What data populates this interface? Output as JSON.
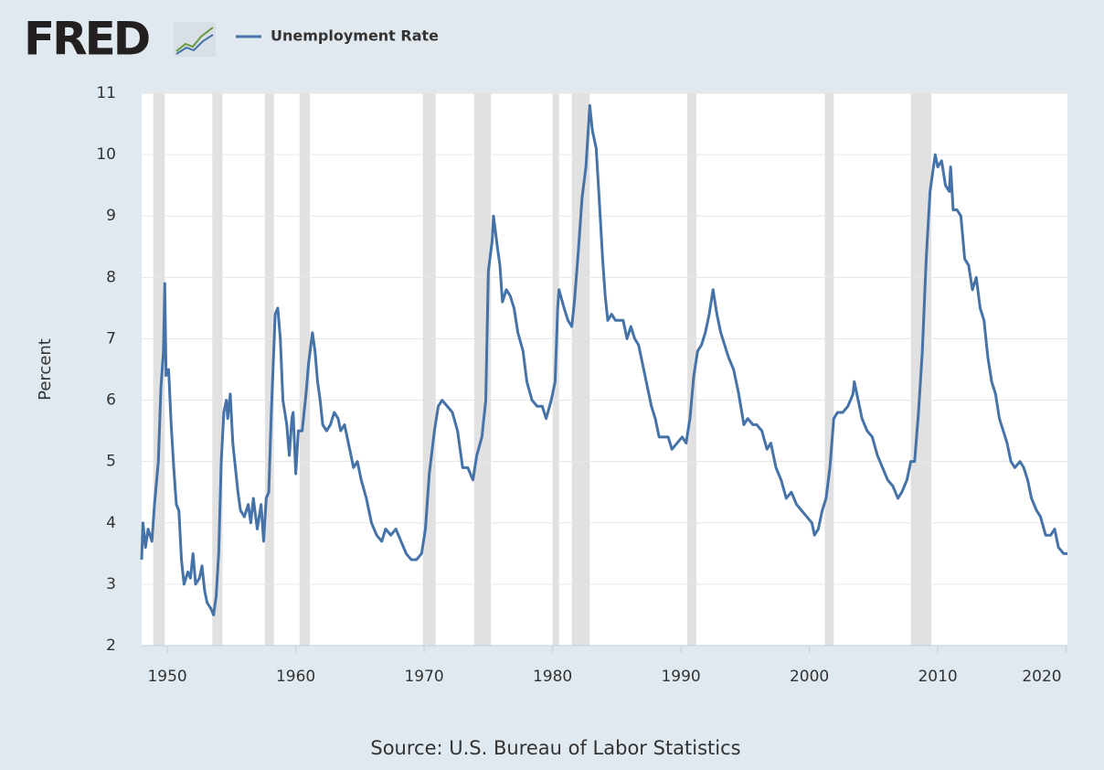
{
  "chart_data": {
    "type": "line",
    "logo": "FRED",
    "ylabel": "Percent",
    "source": "Source: U.S. Bureau of Labor Statistics",
    "xlim": [
      1948,
      2020.1
    ],
    "xticks": [
      1950,
      1960,
      1970,
      1980,
      1990,
      2000,
      2010,
      2020
    ],
    "ylim": [
      2,
      11
    ],
    "yticks": [
      2,
      3,
      4,
      5,
      6,
      7,
      8,
      9,
      10,
      11
    ],
    "grid": true,
    "recession_color": "#e1e1e1",
    "recessions": [
      [
        1948.9,
        1949.8
      ],
      [
        1953.5,
        1954.3
      ],
      [
        1957.6,
        1958.3
      ],
      [
        1960.3,
        1961.1
      ],
      [
        1969.9,
        1970.9
      ],
      [
        1973.9,
        1975.2
      ],
      [
        1980.0,
        1980.5
      ],
      [
        1981.5,
        1982.9
      ],
      [
        1990.5,
        1991.2
      ],
      [
        2001.2,
        2001.9
      ],
      [
        2007.9,
        2009.5
      ]
    ],
    "x": [
      1948.0,
      1948.1,
      1948.3,
      1948.5,
      1948.8,
      1949.0,
      1949.3,
      1949.5,
      1949.7,
      1949.8,
      1949.9,
      1950.1,
      1950.3,
      1950.5,
      1950.7,
      1950.9,
      1951.1,
      1951.3,
      1951.6,
      1951.8,
      1952.0,
      1952.2,
      1952.5,
      1952.7,
      1952.9,
      1953.1,
      1953.4,
      1953.6,
      1953.8,
      1954.0,
      1954.2,
      1954.4,
      1954.6,
      1954.7,
      1954.9,
      1955.1,
      1955.3,
      1955.5,
      1955.7,
      1956.0,
      1956.3,
      1956.5,
      1956.7,
      1957.0,
      1957.3,
      1957.5,
      1957.7,
      1957.9,
      1958.1,
      1958.4,
      1958.6,
      1958.8,
      1959.0,
      1959.3,
      1959.5,
      1959.7,
      1959.8,
      1960.0,
      1960.2,
      1960.5,
      1960.8,
      1961.0,
      1961.3,
      1961.5,
      1961.7,
      1961.9,
      1962.1,
      1962.4,
      1962.7,
      1963.0,
      1963.3,
      1963.5,
      1963.8,
      1964.2,
      1964.5,
      1964.8,
      1965.1,
      1965.5,
      1965.9,
      1966.3,
      1966.7,
      1967.0,
      1967.4,
      1967.8,
      1968.2,
      1968.6,
      1969.0,
      1969.4,
      1969.8,
      1970.1,
      1970.4,
      1970.8,
      1971.1,
      1971.4,
      1971.8,
      1972.2,
      1972.6,
      1973.0,
      1973.4,
      1973.8,
      1974.1,
      1974.5,
      1974.8,
      1975.0,
      1975.3,
      1975.4,
      1975.7,
      1975.9,
      1976.1,
      1976.4,
      1976.7,
      1977.0,
      1977.3,
      1977.7,
      1978.0,
      1978.4,
      1978.8,
      1979.2,
      1979.5,
      1979.9,
      1980.2,
      1980.4,
      1980.5,
      1980.9,
      1981.2,
      1981.5,
      1981.7,
      1982.0,
      1982.3,
      1982.6,
      1982.9,
      1983.1,
      1983.4,
      1983.6,
      1983.9,
      1984.1,
      1984.3,
      1984.6,
      1984.9,
      1985.2,
      1985.5,
      1985.8,
      1986.1,
      1986.4,
      1986.7,
      1987.0,
      1987.3,
      1987.7,
      1988.0,
      1988.3,
      1988.7,
      1989.0,
      1989.3,
      1989.7,
      1990.1,
      1990.4,
      1990.7,
      1991.0,
      1991.3,
      1991.6,
      1991.9,
      1992.2,
      1992.5,
      1992.8,
      1993.1,
      1993.4,
      1993.7,
      1994.1,
      1994.5,
      1994.9,
      1995.2,
      1995.6,
      1995.9,
      1996.3,
      1996.7,
      1997.0,
      1997.4,
      1997.8,
      1998.2,
      1998.6,
      1999.0,
      1999.4,
      1999.8,
      2000.2,
      2000.4,
      2000.7,
      2001.0,
      2001.3,
      2001.6,
      2001.9,
      2002.2,
      2002.6,
      2003.0,
      2003.4,
      2003.5,
      2003.8,
      2004.1,
      2004.5,
      2004.9,
      2005.3,
      2005.7,
      2006.1,
      2006.5,
      2006.9,
      2007.2,
      2007.6,
      2007.9,
      2008.2,
      2008.5,
      2008.8,
      2009.1,
      2009.4,
      2009.8,
      2010.0,
      2010.3,
      2010.6,
      2010.9,
      2011.0,
      2011.2,
      2011.5,
      2011.8,
      2012.1,
      2012.4,
      2012.7,
      2013.0,
      2013.3,
      2013.6,
      2013.9,
      2014.2,
      2014.5,
      2014.8,
      2015.1,
      2015.4,
      2015.7,
      2016.0,
      2016.4,
      2016.7,
      2017.0,
      2017.3,
      2017.7,
      2018.0,
      2018.4,
      2018.8,
      2019.1,
      2019.4,
      2019.8,
      2020.1
    ],
    "series": [
      {
        "name": "Unemployment Rate",
        "color": "#4572a7",
        "values": [
          3.4,
          4.0,
          3.6,
          3.9,
          3.7,
          4.3,
          5.0,
          6.2,
          6.8,
          7.9,
          6.4,
          6.5,
          5.6,
          4.9,
          4.3,
          4.2,
          3.4,
          3.0,
          3.2,
          3.1,
          3.5,
          3.0,
          3.1,
          3.3,
          2.9,
          2.7,
          2.6,
          2.5,
          2.8,
          3.5,
          5.0,
          5.8,
          6.0,
          5.7,
          6.1,
          5.3,
          4.9,
          4.5,
          4.2,
          4.1,
          4.3,
          4.0,
          4.4,
          3.9,
          4.3,
          3.7,
          4.4,
          4.5,
          5.8,
          7.4,
          7.5,
          7.0,
          6.0,
          5.6,
          5.1,
          5.7,
          5.8,
          4.8,
          5.5,
          5.5,
          6.1,
          6.6,
          7.1,
          6.8,
          6.3,
          6.0,
          5.6,
          5.5,
          5.6,
          5.8,
          5.7,
          5.5,
          5.6,
          5.2,
          4.9,
          5.0,
          4.7,
          4.4,
          4.0,
          3.8,
          3.7,
          3.9,
          3.8,
          3.9,
          3.7,
          3.5,
          3.4,
          3.4,
          3.5,
          3.9,
          4.8,
          5.5,
          5.9,
          6.0,
          5.9,
          5.8,
          5.5,
          4.9,
          4.9,
          4.7,
          5.1,
          5.4,
          6.0,
          8.1,
          8.6,
          9.0,
          8.5,
          8.2,
          7.6,
          7.8,
          7.7,
          7.5,
          7.1,
          6.8,
          6.3,
          6.0,
          5.9,
          5.9,
          5.7,
          6.0,
          6.3,
          7.5,
          7.8,
          7.5,
          7.3,
          7.2,
          7.6,
          8.4,
          9.3,
          9.8,
          10.8,
          10.4,
          10.1,
          9.4,
          8.3,
          7.7,
          7.3,
          7.4,
          7.3,
          7.3,
          7.3,
          7.0,
          7.2,
          7.0,
          6.9,
          6.6,
          6.3,
          5.9,
          5.7,
          5.4,
          5.4,
          5.4,
          5.2,
          5.3,
          5.4,
          5.3,
          5.7,
          6.4,
          6.8,
          6.9,
          7.1,
          7.4,
          7.8,
          7.4,
          7.1,
          6.9,
          6.7,
          6.5,
          6.1,
          5.6,
          5.7,
          5.6,
          5.6,
          5.5,
          5.2,
          5.3,
          4.9,
          4.7,
          4.4,
          4.5,
          4.3,
          4.2,
          4.1,
          4.0,
          3.8,
          3.9,
          4.2,
          4.4,
          4.9,
          5.7,
          5.8,
          5.8,
          5.9,
          6.1,
          6.3,
          6.0,
          5.7,
          5.5,
          5.4,
          5.1,
          4.9,
          4.7,
          4.6,
          4.4,
          4.5,
          4.7,
          5.0,
          5.0,
          5.8,
          6.8,
          8.3,
          9.4,
          10.0,
          9.8,
          9.9,
          9.5,
          9.4,
          9.8,
          9.1,
          9.1,
          9.0,
          8.3,
          8.2,
          7.8,
          8.0,
          7.5,
          7.3,
          6.7,
          6.3,
          6.1,
          5.7,
          5.5,
          5.3,
          5.0,
          4.9,
          5.0,
          4.9,
          4.7,
          4.4,
          4.2,
          4.1,
          3.8,
          3.8,
          3.9,
          3.6,
          3.5,
          3.5
        ]
      }
    ]
  }
}
